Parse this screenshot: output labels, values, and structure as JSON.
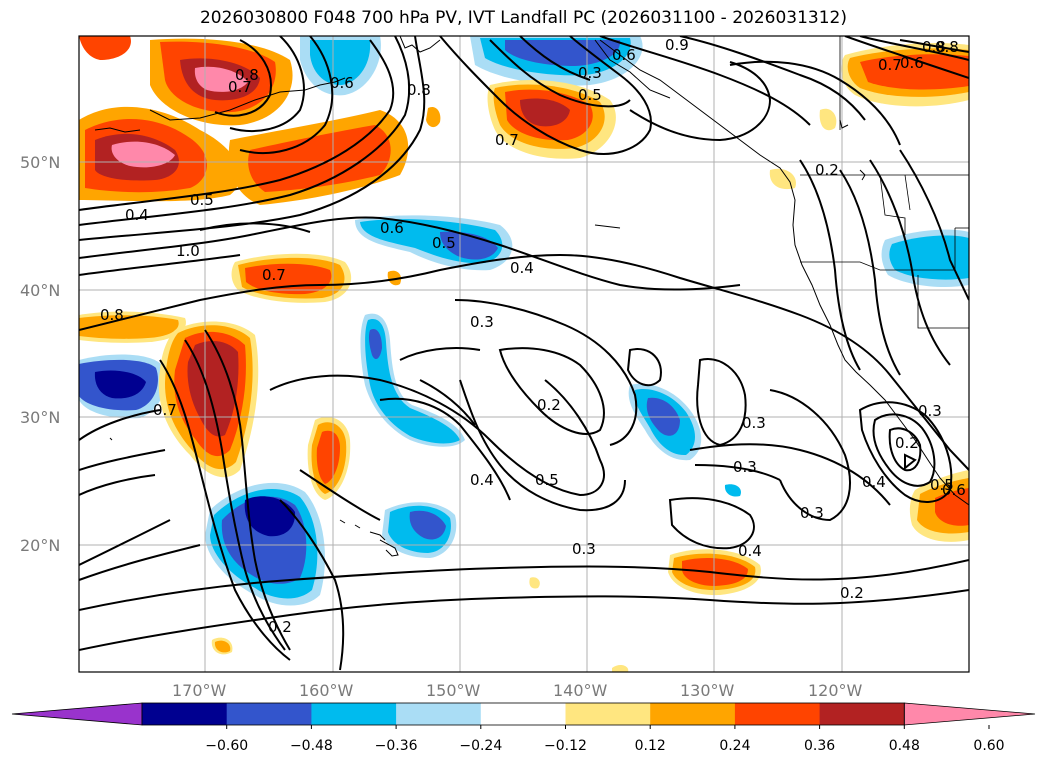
{
  "title": "2026030800 F048 700 hPa PV, IVT Landfall PC (2026031100 - 2026031312)",
  "lat_labels": [
    "50°N",
    "40°N",
    "30°N",
    "20°N"
  ],
  "lon_labels": [
    "170°W",
    "160°W",
    "150°W",
    "140°W",
    "130°W",
    "120°W"
  ],
  "colorbar": {
    "ticks": [
      "−0.60",
      "−0.48",
      "−0.36",
      "−0.24",
      "−0.12",
      "0.12",
      "0.24",
      "0.36",
      "0.48",
      "0.60"
    ],
    "colors": [
      "#9933cc",
      "#000090",
      "#3355cc",
      "#00bbee",
      "#aaddf5",
      "#ffffff",
      "#ffe680",
      "#ffa500",
      "#ff4400",
      "#b22222",
      "#ff88aa"
    ]
  },
  "contour_labels": [
    "0.8",
    "0.7",
    "0.6",
    "0.8",
    "0.3",
    "0.9",
    "0.6",
    "0.5",
    "0.7",
    "0.8",
    "0.7",
    "0.6",
    "0.8",
    "0.5",
    "0.4",
    "1.0",
    "0.6",
    "0.5",
    "0.4",
    "0.7",
    "0.8",
    "0.3",
    "0.2",
    "0.3",
    "0.2",
    "0.3",
    "0.7",
    "0.5",
    "0.4",
    "0.3",
    "0.3",
    "0.3",
    "0.4",
    "0.2",
    "0.2",
    "0.4",
    "0.5",
    "0.6",
    "0.2"
  ]
}
